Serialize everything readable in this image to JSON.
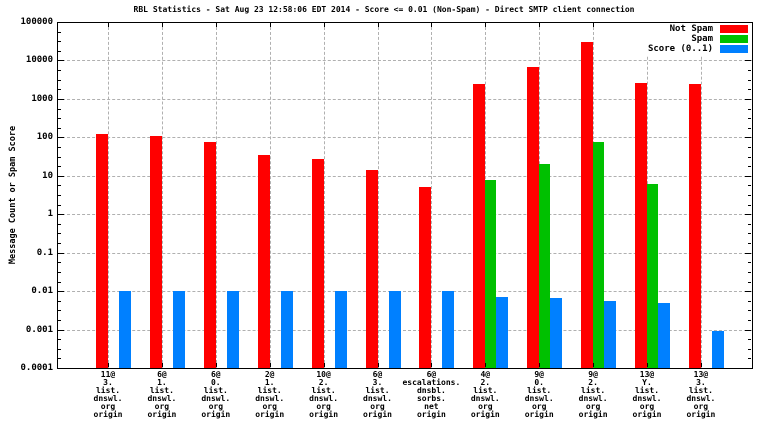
{
  "window": {
    "background": "#ffffff"
  },
  "chart_data": {
    "type": "bar",
    "title": "RBL Statistics - Sat Aug 23 12:58:06 EDT 2014 - Score <= 0.01 (Non-Spam) - Direct SMTP client connection",
    "ylabel": "Message Count or Spam Score",
    "xlabel": "",
    "y_scale": "log10",
    "ylim": [
      0.0001,
      100000
    ],
    "ytick_labels": [
      "100000",
      "10000",
      "1000",
      "100",
      "10",
      "1",
      "0.1",
      "0.01",
      "0.001",
      "0.0001"
    ],
    "grid": true,
    "legend_position": "top-right",
    "categories": [
      [
        "11@",
        "3.",
        "list.",
        "dnswl.",
        "org",
        "origin"
      ],
      [
        "6@",
        "1.",
        "list.",
        "dnswl.",
        "org",
        "origin"
      ],
      [
        "6@",
        "0.",
        "list.",
        "dnswl.",
        "org",
        "origin"
      ],
      [
        "2@",
        "1.",
        "list.",
        "dnswl.",
        "org",
        "origin"
      ],
      [
        "10@",
        "2.",
        "list.",
        "dnswl.",
        "org",
        "origin"
      ],
      [
        "6@",
        "3.",
        "list.",
        "dnswl.",
        "org",
        "origin"
      ],
      [
        "6@",
        "escalations.",
        "dnsbl.",
        "sorbs.",
        "net",
        "origin"
      ],
      [
        "4@",
        "2.",
        "list.",
        "dnswl.",
        "org",
        "origin"
      ],
      [
        "9@",
        "0.",
        "list.",
        "dnswl.",
        "org",
        "origin"
      ],
      [
        "9@",
        "2.",
        "list.",
        "dnswl.",
        "org",
        "origin"
      ],
      [
        "13@",
        "Y.",
        "list.",
        "dnswl.",
        "org",
        "origin"
      ],
      [
        "13@",
        "3.",
        "list.",
        "dnswl.",
        "org",
        "origin"
      ]
    ],
    "series": [
      {
        "name": "Not Spam",
        "color": "#ff0000",
        "values": [
          120,
          110,
          75,
          35,
          27,
          14,
          5,
          2400,
          6600,
          31000,
          2600,
          2400
        ]
      },
      {
        "name": "Spam",
        "color": "#00c000",
        "values": [
          null,
          null,
          null,
          null,
          null,
          null,
          null,
          8,
          20,
          77,
          6,
          null
        ]
      },
      {
        "name": "Score (0..1)",
        "color": "#0080ff",
        "values": [
          0.01,
          0.01,
          0.01,
          0.01,
          0.01,
          0.01,
          0.01,
          0.007,
          0.0065,
          0.0055,
          0.005,
          0.0009
        ]
      }
    ],
    "colors": {
      "grid": "#b0b0b0",
      "axis": "#000000",
      "text": "#000000",
      "background": "#ffffff"
    }
  }
}
